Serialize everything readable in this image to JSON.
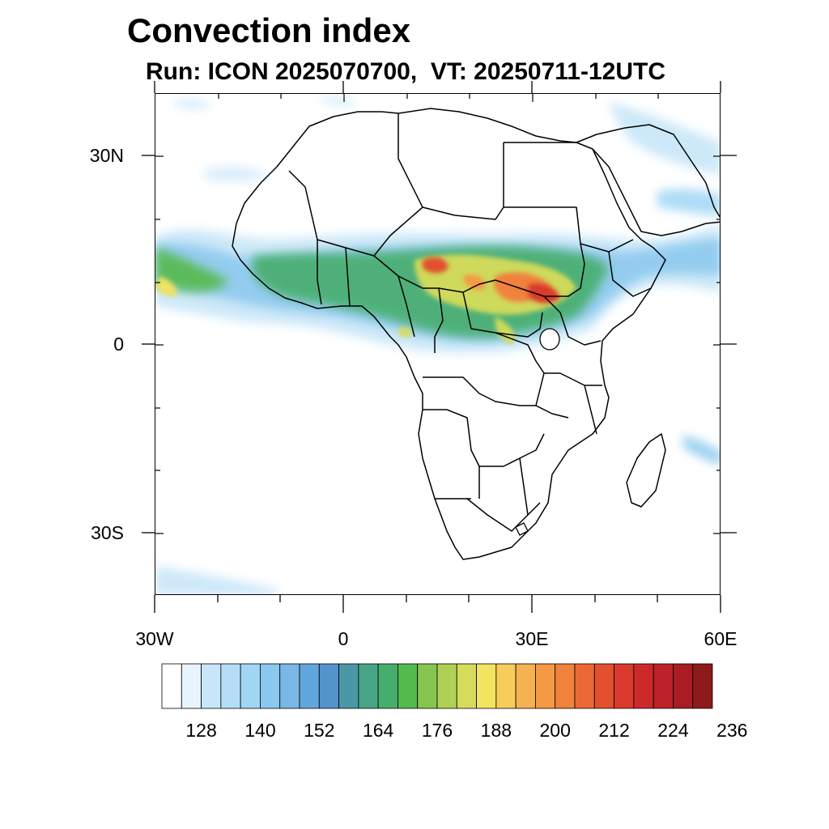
{
  "title": "Convection index",
  "subtitle": "Run: ICON 2025070700,  VT: 20250711-12UTC",
  "map": {
    "lon_range": [
      -30,
      60
    ],
    "lat_range": [
      -40,
      40
    ],
    "y_tick_labels": [
      "30N",
      "0",
      "30S"
    ],
    "x_tick_labels": [
      "30W",
      "0",
      "30E",
      "60E"
    ]
  },
  "colorbar": {
    "colors": [
      "#ffffff",
      "#e8f4fc",
      "#c8e6f8",
      "#b4def6",
      "#a0d6f4",
      "#8ac8ee",
      "#78b8e6",
      "#62a6de",
      "#5294cc",
      "#4a98a6",
      "#48a486",
      "#46ae6c",
      "#54ba4c",
      "#86c650",
      "#aed054",
      "#d6dc5a",
      "#f2e45e",
      "#f8cc5a",
      "#f6b250",
      "#f49a44",
      "#f0823c",
      "#ea6834",
      "#e2502e",
      "#da3a2c",
      "#cc2a2a",
      "#bc2228",
      "#a81c22",
      "#8e1a1c"
    ],
    "labels": [
      "128",
      "140",
      "152",
      "164",
      "176",
      "188",
      "200",
      "212",
      "224",
      "236"
    ]
  }
}
